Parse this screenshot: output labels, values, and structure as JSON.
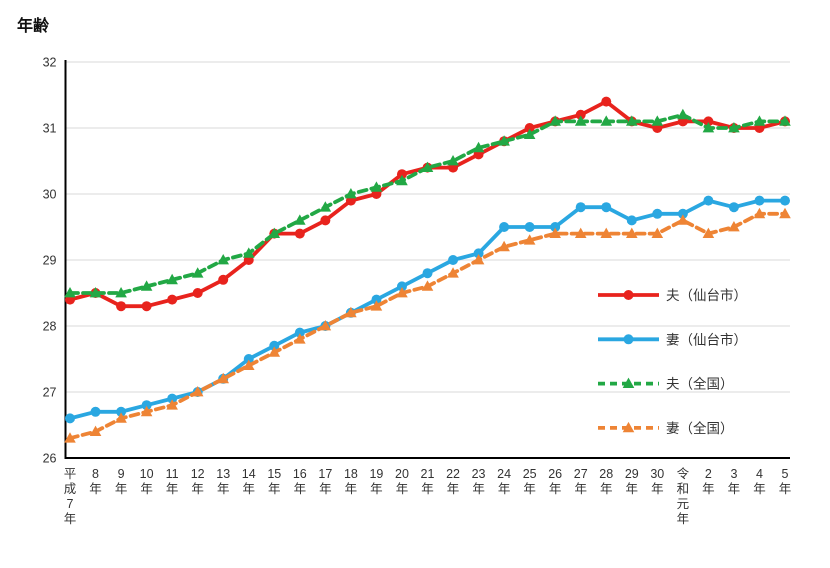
{
  "chart_data": {
    "type": "line",
    "title": "年齢",
    "ylim": [
      26,
      32
    ],
    "yticks": [
      26,
      27,
      28,
      29,
      30,
      31,
      32
    ],
    "grid": true,
    "legend_position": "middle-right",
    "categories": [
      "平成7年",
      "8年",
      "9年",
      "10年",
      "11年",
      "12年",
      "13年",
      "14年",
      "15年",
      "16年",
      "17年",
      "18年",
      "19年",
      "20年",
      "21年",
      "22年",
      "23年",
      "24年",
      "25年",
      "26年",
      "27年",
      "28年",
      "29年",
      "30年",
      "令和元年",
      "2年",
      "3年",
      "4年",
      "5年"
    ],
    "series": [
      {
        "id": "husband-sendai",
        "name": "夫（仙台市）",
        "color": "#e8231d",
        "style": "solid",
        "marker": "circle",
        "values": [
          28.4,
          28.5,
          28.3,
          28.3,
          28.4,
          28.5,
          28.7,
          29.0,
          29.4,
          29.4,
          29.6,
          29.9,
          30.0,
          30.3,
          30.4,
          30.4,
          30.6,
          30.8,
          31.0,
          31.1,
          31.2,
          31.4,
          31.1,
          31.0,
          31.1,
          31.1,
          31.0,
          31.0,
          31.1
        ]
      },
      {
        "id": "wife-sendai",
        "name": "妻（仙台市）",
        "color": "#2aa7e1",
        "style": "solid",
        "marker": "circle",
        "values": [
          26.6,
          26.7,
          26.7,
          26.8,
          26.9,
          27.0,
          27.2,
          27.5,
          27.7,
          27.9,
          28.0,
          28.2,
          28.4,
          28.6,
          28.8,
          29.0,
          29.1,
          29.5,
          29.5,
          29.5,
          29.8,
          29.8,
          29.6,
          29.7,
          29.7,
          29.9,
          29.8,
          29.9,
          29.9
        ]
      },
      {
        "id": "husband-national",
        "name": "夫（全国）",
        "color": "#22a845",
        "style": "dashed",
        "marker": "triangle",
        "values": [
          28.5,
          28.5,
          28.5,
          28.6,
          28.7,
          28.8,
          29.0,
          29.1,
          29.4,
          29.6,
          29.8,
          30.0,
          30.1,
          30.2,
          30.4,
          30.5,
          30.7,
          30.8,
          30.9,
          31.1,
          31.1,
          31.1,
          31.1,
          31.1,
          31.2,
          31.0,
          31.0,
          31.1,
          31.1
        ]
      },
      {
        "id": "wife-national",
        "name": "妻（全国）",
        "color": "#ee8435",
        "style": "dashed",
        "marker": "triangle",
        "values": [
          26.3,
          26.4,
          26.6,
          26.7,
          26.8,
          27.0,
          27.2,
          27.4,
          27.6,
          27.8,
          28.0,
          28.2,
          28.3,
          28.5,
          28.6,
          28.8,
          29.0,
          29.2,
          29.3,
          29.4,
          29.4,
          29.4,
          29.4,
          29.4,
          29.6,
          29.4,
          29.5,
          29.7,
          29.7
        ]
      }
    ]
  },
  "colors": {
    "gridline": "#d9d9d9",
    "axis": "#000000",
    "tick_text": "#333333"
  }
}
